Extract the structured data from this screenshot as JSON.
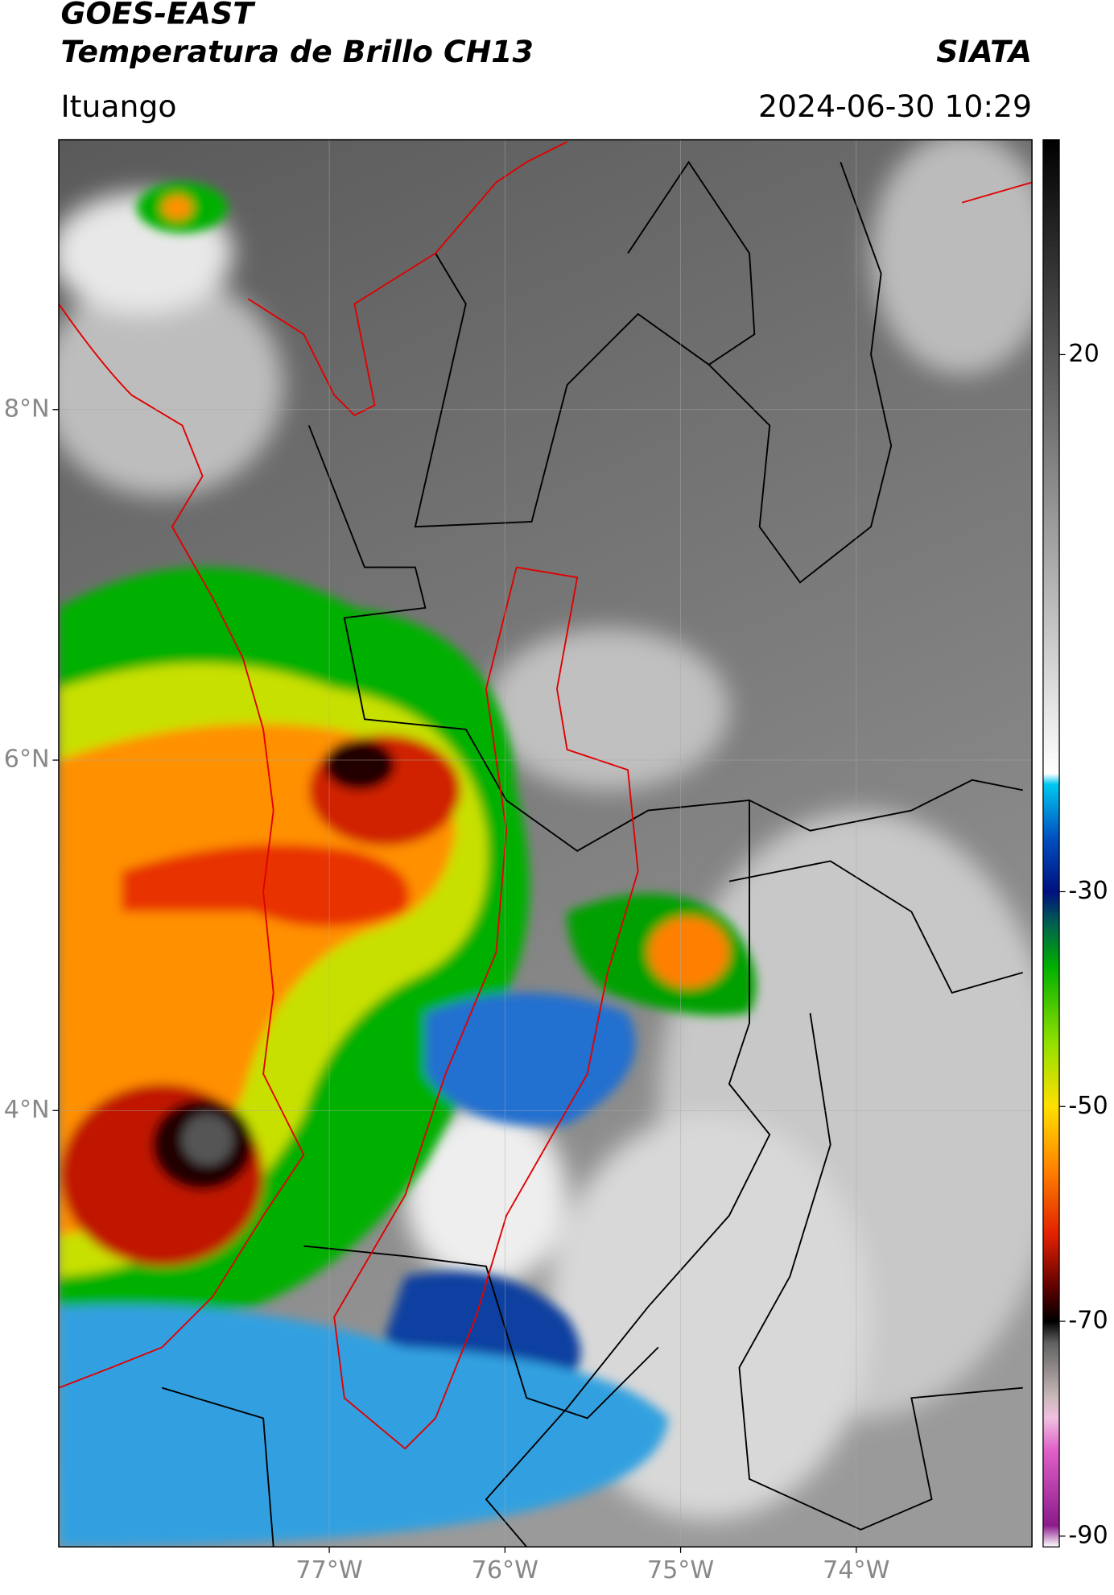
{
  "header": {
    "title_line1": "GOES-EAST",
    "title_line2": "Temperatura de Brillo CH13",
    "source": "SIATA",
    "location": "Ituango",
    "datetime": "2024-06-30 10:29"
  },
  "map": {
    "lonlim": [
      -78.54,
      -73.0
    ],
    "latlim": [
      1.51,
      9.54
    ],
    "lonticks": [
      {
        "value": -77,
        "label": "77°W"
      },
      {
        "value": -76,
        "label": "76°W"
      },
      {
        "value": -75,
        "label": "75°W"
      },
      {
        "value": -74,
        "label": "74°W"
      }
    ],
    "latticks": [
      {
        "value": 8,
        "label": "8°N"
      },
      {
        "value": 6,
        "label": "6°N"
      },
      {
        "value": 4,
        "label": "4°N"
      }
    ],
    "grid": true
  },
  "colorbar": {
    "lim": [
      -91,
      40
    ],
    "ticks": [
      20,
      -30,
      -50,
      -70,
      -90
    ],
    "stops": [
      {
        "value": -91,
        "color": "#ffffff"
      },
      {
        "value": -89,
        "color": "#8b1a8b"
      },
      {
        "value": -82,
        "color": "#e060c8"
      },
      {
        "value": -79,
        "color": "#f0c0e0"
      },
      {
        "value": -77,
        "color": "#c8b8b8"
      },
      {
        "value": -72,
        "color": "#606060"
      },
      {
        "value": -70,
        "color": "#000000"
      },
      {
        "value": -67,
        "color": "#5a0000"
      },
      {
        "value": -62,
        "color": "#e02000"
      },
      {
        "value": -56,
        "color": "#ff8000"
      },
      {
        "value": -50,
        "color": "#ffe000"
      },
      {
        "value": -44,
        "color": "#90e000"
      },
      {
        "value": -37,
        "color": "#00b000"
      },
      {
        "value": -33,
        "color": "#006050"
      },
      {
        "value": -30,
        "color": "#001080"
      },
      {
        "value": -25,
        "color": "#0050c0"
      },
      {
        "value": -20,
        "color": "#00c8f0"
      },
      {
        "value": -19,
        "color": "#ffffff"
      },
      {
        "value": 40,
        "color": "#000000"
      }
    ]
  }
}
